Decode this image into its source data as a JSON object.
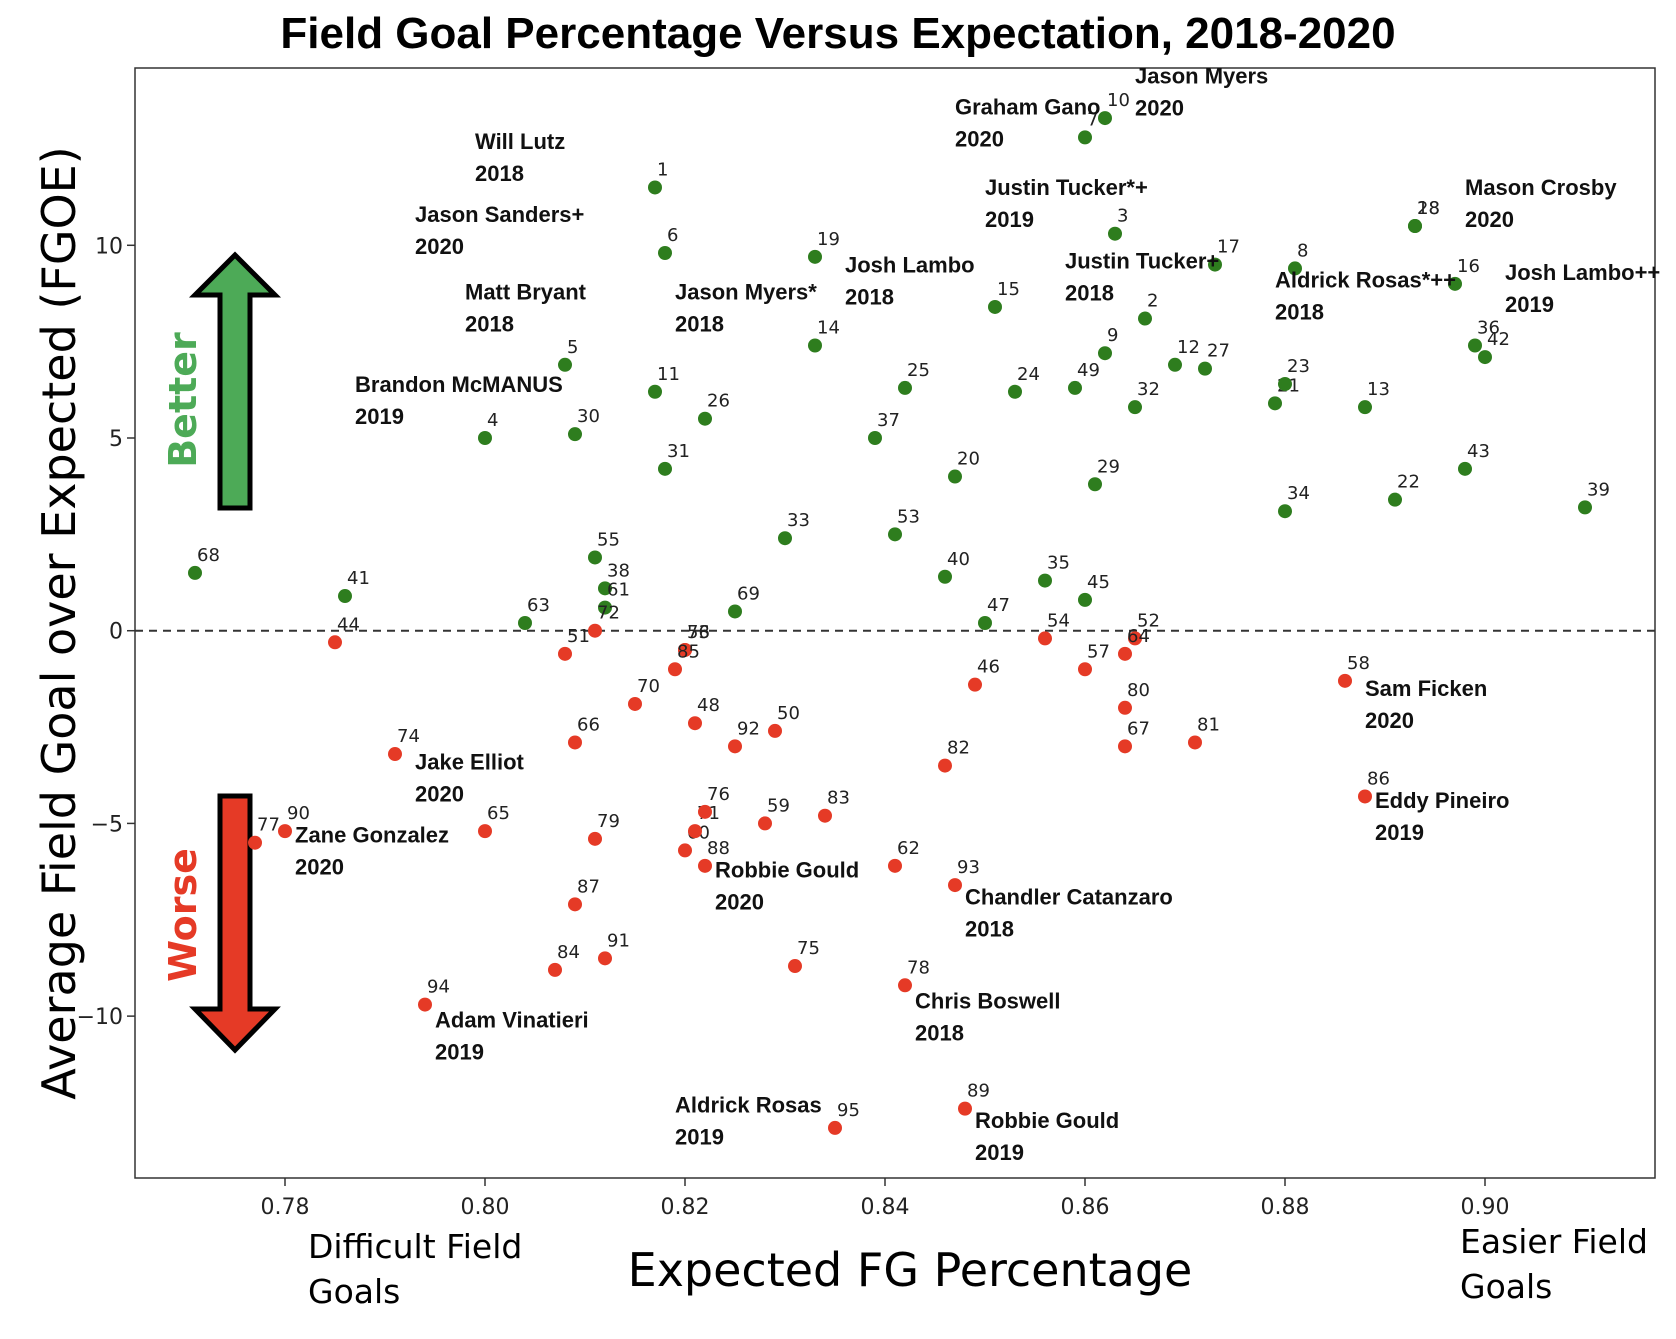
{
  "chart_data": {
    "type": "scatter",
    "title": "Field Goal Percentage Versus Expectation, 2018-2020",
    "xlabel": "Expected FG Percentage",
    "ylabel": "Average Field Goal over Expected (FGOE)",
    "xlim": [
      0.765,
      0.917
    ],
    "ylim": [
      -14.2,
      14.6
    ],
    "x_ticks": [
      0.78,
      0.8,
      0.82,
      0.84,
      0.86,
      0.88,
      0.9
    ],
    "x_tick_labels": [
      "0.78",
      "0.80",
      "0.82",
      "0.84",
      "0.86",
      "0.88",
      "0.90"
    ],
    "y_ticks": [
      10,
      5,
      0,
      -5,
      -10
    ],
    "y_tick_labels": [
      "10",
      "5",
      "0",
      "−5",
      "−10"
    ],
    "reference_line_y": 0,
    "x_left_note": "Difficult Field Goals",
    "x_right_note": "Easier Field Goals",
    "better_label": "Better",
    "worse_label": "Worse",
    "colors": {
      "positive": "#2e7d1e",
      "negative": "#e53a26",
      "better_arrow": "#4daa57",
      "worse_arrow": "#e53a26"
    },
    "series": [
      {
        "color": "#2e7d1e",
        "points": [
          {
            "label": "1",
            "x": 0.817,
            "y": 11.5
          },
          {
            "label": "2",
            "x": 0.866,
            "y": 8.1
          },
          {
            "label": "3",
            "x": 0.863,
            "y": 10.3
          },
          {
            "label": "4",
            "x": 0.8,
            "y": 5.0
          },
          {
            "label": "5",
            "x": 0.808,
            "y": 6.9
          },
          {
            "label": "6",
            "x": 0.818,
            "y": 9.8
          },
          {
            "label": "7",
            "x": 0.86,
            "y": 12.8
          },
          {
            "label": "8",
            "x": 0.881,
            "y": 9.4
          },
          {
            "label": "9",
            "x": 0.862,
            "y": 7.2
          },
          {
            "label": "10",
            "x": 0.862,
            "y": 13.3
          },
          {
            "label": "11",
            "x": 0.817,
            "y": 6.2
          },
          {
            "label": "12",
            "x": 0.869,
            "y": 6.9
          },
          {
            "label": "13",
            "x": 0.888,
            "y": 5.8
          },
          {
            "label": "14",
            "x": 0.833,
            "y": 7.4
          },
          {
            "label": "15",
            "x": 0.851,
            "y": 8.4
          },
          {
            "label": "16",
            "x": 0.897,
            "y": 9.0
          },
          {
            "label": "17",
            "x": 0.873,
            "y": 9.5
          },
          {
            "label": "18",
            "x": 0.893,
            "y": 10.5
          },
          {
            "label": "19",
            "x": 0.833,
            "y": 9.7
          },
          {
            "label": "20",
            "x": 0.847,
            "y": 4.0
          },
          {
            "label": "21",
            "x": 0.879,
            "y": 5.9
          },
          {
            "label": "22",
            "x": 0.891,
            "y": 3.4
          },
          {
            "label": "23",
            "x": 0.88,
            "y": 6.4
          },
          {
            "label": "24",
            "x": 0.853,
            "y": 6.2
          },
          {
            "label": "25",
            "x": 0.842,
            "y": 6.3
          },
          {
            "label": "26",
            "x": 0.822,
            "y": 5.5
          },
          {
            "label": "27",
            "x": 0.872,
            "y": 6.8
          },
          {
            "label": "28",
            "x": 0.893,
            "y": 10.5
          },
          {
            "label": "29",
            "x": 0.861,
            "y": 3.8
          },
          {
            "label": "30",
            "x": 0.809,
            "y": 5.1
          },
          {
            "label": "31",
            "x": 0.818,
            "y": 4.2
          },
          {
            "label": "32",
            "x": 0.865,
            "y": 5.8
          },
          {
            "label": "33",
            "x": 0.83,
            "y": 2.4
          },
          {
            "label": "34",
            "x": 0.88,
            "y": 3.1
          },
          {
            "label": "35",
            "x": 0.856,
            "y": 1.3
          },
          {
            "label": "36",
            "x": 0.899,
            "y": 7.4
          },
          {
            "label": "37",
            "x": 0.839,
            "y": 5.0
          },
          {
            "label": "38",
            "x": 0.812,
            "y": 1.1
          },
          {
            "label": "39",
            "x": 0.91,
            "y": 3.2
          },
          {
            "label": "40",
            "x": 0.846,
            "y": 1.4
          },
          {
            "label": "41",
            "x": 0.786,
            "y": 0.9
          },
          {
            "label": "42",
            "x": 0.9,
            "y": 7.1
          },
          {
            "label": "43",
            "x": 0.898,
            "y": 4.2
          },
          {
            "label": "45",
            "x": 0.86,
            "y": 0.8
          },
          {
            "label": "47",
            "x": 0.85,
            "y": 0.2
          },
          {
            "label": "49",
            "x": 0.859,
            "y": 6.3
          },
          {
            "label": "53",
            "x": 0.841,
            "y": 2.5
          },
          {
            "label": "55",
            "x": 0.811,
            "y": 1.9
          },
          {
            "label": "61",
            "x": 0.812,
            "y": 0.6
          },
          {
            "label": "63",
            "x": 0.804,
            "y": 0.2
          },
          {
            "label": "68",
            "x": 0.771,
            "y": 1.5
          },
          {
            "label": "69",
            "x": 0.825,
            "y": 0.5
          }
        ]
      },
      {
        "color": "#e53a26",
        "points": [
          {
            "label": "44",
            "x": 0.785,
            "y": -0.3
          },
          {
            "label": "46",
            "x": 0.849,
            "y": -1.4
          },
          {
            "label": "48",
            "x": 0.821,
            "y": -2.4
          },
          {
            "label": "50",
            "x": 0.829,
            "y": -2.6
          },
          {
            "label": "51",
            "x": 0.808,
            "y": -0.6
          },
          {
            "label": "52",
            "x": 0.865,
            "y": -0.2
          },
          {
            "label": "54",
            "x": 0.856,
            "y": -0.2
          },
          {
            "label": "56",
            "x": 0.82,
            "y": -0.5
          },
          {
            "label": "57",
            "x": 0.86,
            "y": -1.0
          },
          {
            "label": "58",
            "x": 0.886,
            "y": -1.3
          },
          {
            "label": "59",
            "x": 0.828,
            "y": -5.0
          },
          {
            "label": "60",
            "x": 0.82,
            "y": -5.7
          },
          {
            "label": "62",
            "x": 0.841,
            "y": -6.1
          },
          {
            "label": "64",
            "x": 0.864,
            "y": -0.6
          },
          {
            "label": "65",
            "x": 0.8,
            "y": -5.2
          },
          {
            "label": "66",
            "x": 0.809,
            "y": -2.9
          },
          {
            "label": "67",
            "x": 0.864,
            "y": -3.0
          },
          {
            "label": "70",
            "x": 0.815,
            "y": -1.9
          },
          {
            "label": "71",
            "x": 0.821,
            "y": -5.2
          },
          {
            "label": "72",
            "x": 0.811,
            "y": 0.0
          },
          {
            "label": "73",
            "x": 0.82,
            "y": -0.5
          },
          {
            "label": "74",
            "x": 0.791,
            "y": -3.2
          },
          {
            "label": "75",
            "x": 0.831,
            "y": -8.7
          },
          {
            "label": "76",
            "x": 0.822,
            "y": -4.7
          },
          {
            "label": "77",
            "x": 0.777,
            "y": -5.5
          },
          {
            "label": "78",
            "x": 0.842,
            "y": -9.2
          },
          {
            "label": "79",
            "x": 0.811,
            "y": -5.4
          },
          {
            "label": "80",
            "x": 0.864,
            "y": -2.0
          },
          {
            "label": "81",
            "x": 0.871,
            "y": -2.9
          },
          {
            "label": "82",
            "x": 0.846,
            "y": -3.5
          },
          {
            "label": "83",
            "x": 0.834,
            "y": -4.8
          },
          {
            "label": "84",
            "x": 0.807,
            "y": -8.8
          },
          {
            "label": "85",
            "x": 0.819,
            "y": -1.0
          },
          {
            "label": "86",
            "x": 0.888,
            "y": -4.3
          },
          {
            "label": "87",
            "x": 0.809,
            "y": -7.1
          },
          {
            "label": "88",
            "x": 0.822,
            "y": -6.1
          },
          {
            "label": "89",
            "x": 0.848,
            "y": -12.4
          },
          {
            "label": "90",
            "x": 0.78,
            "y": -5.2
          },
          {
            "label": "91",
            "x": 0.812,
            "y": -8.5
          },
          {
            "label": "92",
            "x": 0.825,
            "y": -3.0
          },
          {
            "label": "93",
            "x": 0.847,
            "y": -6.6
          },
          {
            "label": "94",
            "x": 0.794,
            "y": -9.7
          },
          {
            "label": "95",
            "x": 0.835,
            "y": -12.9
          }
        ]
      }
    ],
    "annotations": [
      {
        "name": "Will Lutz",
        "year": "2018",
        "x": 0.799,
        "y": 12.5
      },
      {
        "name": "Jason Sanders+",
        "year": "2020",
        "x": 0.793,
        "y": 10.6
      },
      {
        "name": "Matt Bryant",
        "year": "2018",
        "x": 0.798,
        "y": 8.6
      },
      {
        "name": "Brandon McMANUS",
        "year": "2019",
        "x": 0.787,
        "y": 6.2
      },
      {
        "name": "Jason Myers*",
        "year": "2018",
        "x": 0.819,
        "y": 8.6
      },
      {
        "name": "Josh Lambo",
        "year": "2018",
        "x": 0.836,
        "y": 9.3
      },
      {
        "name": "Graham Gano",
        "year": "2020",
        "x": 0.847,
        "y": 13.4
      },
      {
        "name": "Jason Myers",
        "year": "2020",
        "x": 0.865,
        "y": 14.2
      },
      {
        "name": "Justin Tucker*+",
        "year": "2019",
        "x": 0.85,
        "y": 11.3
      },
      {
        "name": "Justin Tucker+",
        "year": "2018",
        "x": 0.858,
        "y": 9.4
      },
      {
        "name": "Aldrick Rosas*++",
        "year": "2018",
        "x": 0.879,
        "y": 8.9
      },
      {
        "name": "Mason Crosby",
        "year": "2020",
        "x": 0.898,
        "y": 11.3
      },
      {
        "name": "Josh Lambo++",
        "year": "2019",
        "x": 0.902,
        "y": 9.1
      },
      {
        "name": "Sam Ficken",
        "year": "2020",
        "x": 0.888,
        "y": -1.7
      },
      {
        "name": "Eddy Pineiro",
        "year": "2019",
        "x": 0.889,
        "y": -4.6
      },
      {
        "name": "Jake Elliot",
        "year": "2020",
        "x": 0.793,
        "y": -3.6
      },
      {
        "name": "Zane Gonzalez",
        "year": "2020",
        "x": 0.781,
        "y": -5.5
      },
      {
        "name": "Robbie Gould",
        "year": "2020",
        "x": 0.823,
        "y": -6.4
      },
      {
        "name": "Chandler Catanzaro",
        "year": "2018",
        "x": 0.848,
        "y": -7.1
      },
      {
        "name": "Chris Boswell",
        "year": "2018",
        "x": 0.843,
        "y": -9.8
      },
      {
        "name": "Adam Vinatieri",
        "year": "2019",
        "x": 0.795,
        "y": -10.3
      },
      {
        "name": "Aldrick Rosas",
        "year": "2019",
        "x": 0.819,
        "y": -12.5
      },
      {
        "name": "Robbie Gould",
        "year": "2019",
        "x": 0.849,
        "y": -12.9
      }
    ]
  }
}
